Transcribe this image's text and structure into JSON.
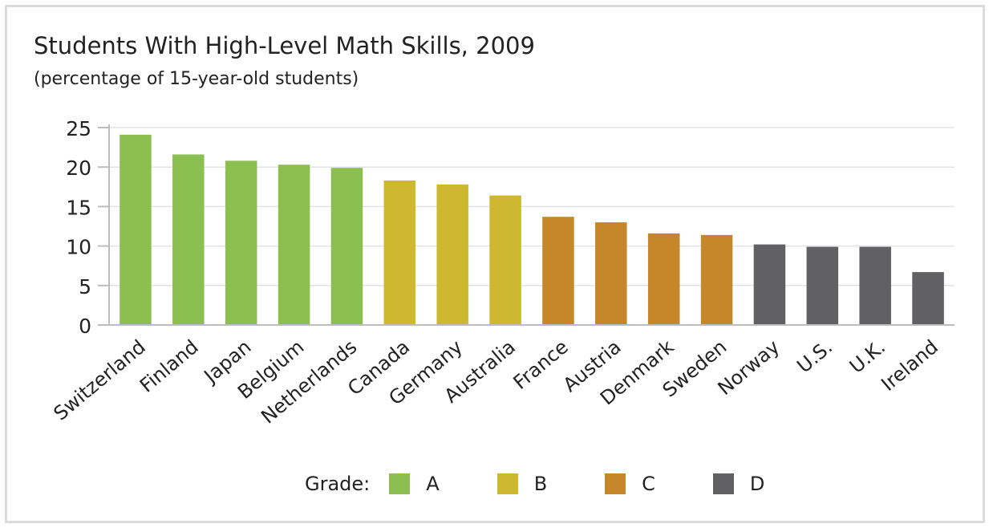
{
  "chart_data": {
    "type": "bar",
    "title": "Students With High-Level Math Skills, 2009",
    "subtitle": "(percentage of 15-year-old students)",
    "xlabel": "",
    "ylabel": "",
    "ylim": [
      0,
      25
    ],
    "yticks": [
      0,
      5,
      10,
      15,
      20,
      25
    ],
    "grid": true,
    "categories": [
      "Switzerland",
      "Finland",
      "Japan",
      "Belgium",
      "Netherlands",
      "Canada",
      "Germany",
      "Australia",
      "France",
      "Austria",
      "Denmark",
      "Sweden",
      "Norway",
      "U.S.",
      "U.K.",
      "Ireland"
    ],
    "values": [
      24.1,
      21.6,
      20.8,
      20.3,
      19.9,
      18.3,
      17.8,
      16.4,
      13.7,
      13.0,
      11.6,
      11.4,
      10.2,
      9.9,
      9.9,
      6.7
    ],
    "grades": [
      "A",
      "A",
      "A",
      "A",
      "A",
      "B",
      "B",
      "B",
      "C",
      "C",
      "C",
      "C",
      "D",
      "D",
      "D",
      "D"
    ],
    "legend": {
      "label": "Grade:",
      "placement": "bottom",
      "items": [
        {
          "grade": "A",
          "color": "#8bbf4f"
        },
        {
          "grade": "B",
          "color": "#cdb82f"
        },
        {
          "grade": "C",
          "color": "#c5872a"
        },
        {
          "grade": "D",
          "color": "#616163"
        }
      ]
    }
  }
}
